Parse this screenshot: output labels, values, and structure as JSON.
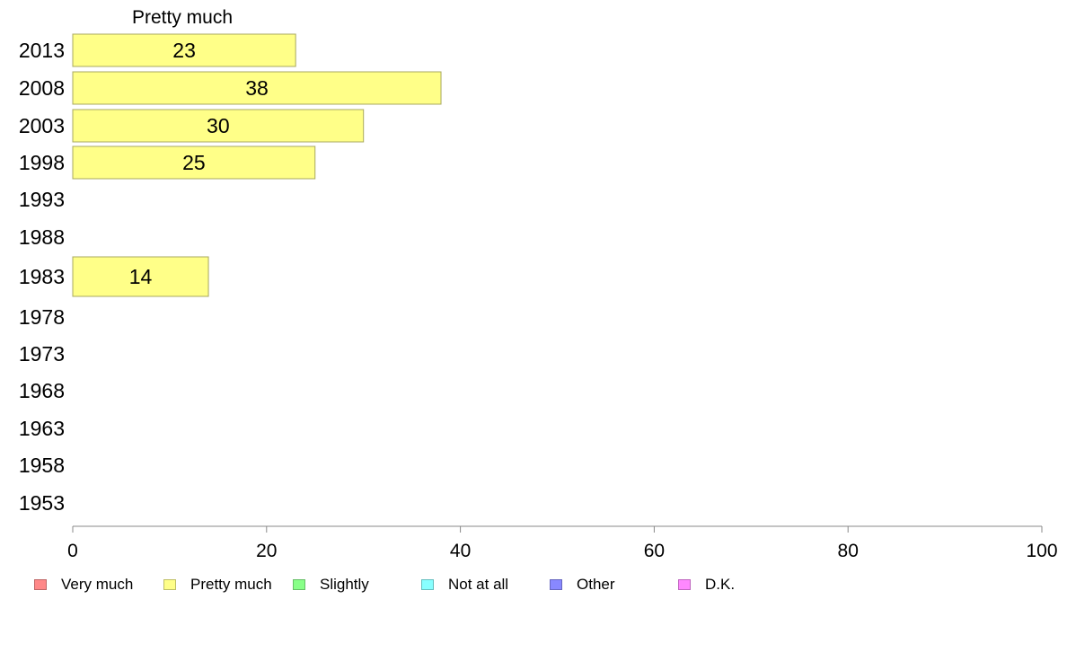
{
  "chart_data": {
    "type": "bar",
    "orientation": "horizontal",
    "panel_title": "Pretty much",
    "categories": [
      "2013",
      "2008",
      "2003",
      "1998",
      "1993",
      "1988",
      "1983",
      "1978",
      "1973",
      "1968",
      "1963",
      "1958",
      "1953"
    ],
    "series": [
      {
        "name": "Pretty much",
        "color": "#ffff88",
        "values": [
          23,
          38,
          30,
          25,
          null,
          null,
          14,
          null,
          null,
          null,
          null,
          null,
          null
        ],
        "value_labels": [
          "23",
          "38",
          "30",
          "25",
          "",
          "",
          "14",
          "",
          "",
          "",
          "",
          "",
          ""
        ]
      }
    ],
    "xlim": [
      0,
      100
    ],
    "xticks": [
      "0",
      "20",
      "40",
      "60",
      "80",
      "100"
    ],
    "grid": false,
    "legend": {
      "placement": "bottom",
      "items": [
        {
          "label": "Very much",
          "color": "#ff8888"
        },
        {
          "label": "Pretty much",
          "color": "#ffff88"
        },
        {
          "label": "Slightly",
          "color": "#88ff88"
        },
        {
          "label": "Not at all",
          "color": "#88ffff"
        },
        {
          "label": "Other",
          "color": "#8888ff"
        },
        {
          "label": "D.K.",
          "color": "#ff88ff"
        }
      ]
    }
  }
}
